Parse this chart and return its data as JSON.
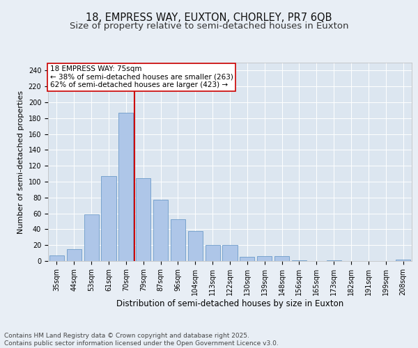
{
  "title1": "18, EMPRESS WAY, EUXTON, CHORLEY, PR7 6QB",
  "title2": "Size of property relative to semi-detached houses in Euxton",
  "xlabel": "Distribution of semi-detached houses by size in Euxton",
  "ylabel": "Number of semi-detached properties",
  "categories": [
    "35sqm",
    "44sqm",
    "53sqm",
    "61sqm",
    "70sqm",
    "79sqm",
    "87sqm",
    "96sqm",
    "104sqm",
    "113sqm",
    "122sqm",
    "130sqm",
    "139sqm",
    "148sqm",
    "156sqm",
    "165sqm",
    "173sqm",
    "182sqm",
    "191sqm",
    "199sqm",
    "208sqm"
  ],
  "values": [
    7,
    15,
    59,
    107,
    187,
    104,
    77,
    53,
    38,
    20,
    20,
    5,
    6,
    6,
    1,
    0,
    1,
    0,
    0,
    0,
    2
  ],
  "bar_color": "#aec6e8",
  "bar_edge_color": "#5a8fc2",
  "vline_x_index": 4,
  "vline_color": "#cc0000",
  "annotation_title": "18 EMPRESS WAY: 75sqm",
  "annotation_line1": "← 38% of semi-detached houses are smaller (263)",
  "annotation_line2": "62% of semi-detached houses are larger (423) →",
  "annotation_box_color": "#ffffff",
  "annotation_box_edge": "#cc0000",
  "ylim": [
    0,
    250
  ],
  "yticks": [
    0,
    20,
    40,
    60,
    80,
    100,
    120,
    140,
    160,
    180,
    200,
    220,
    240
  ],
  "bg_color": "#e8eef5",
  "plot_bg_color": "#dce6f0",
  "footer": "Contains HM Land Registry data © Crown copyright and database right 2025.\nContains public sector information licensed under the Open Government Licence v3.0.",
  "title_fontsize": 10.5,
  "subtitle_fontsize": 9.5,
  "xlabel_fontsize": 8.5,
  "ylabel_fontsize": 8,
  "tick_fontsize": 7,
  "footer_fontsize": 6.5,
  "annotation_fontsize": 7.5
}
